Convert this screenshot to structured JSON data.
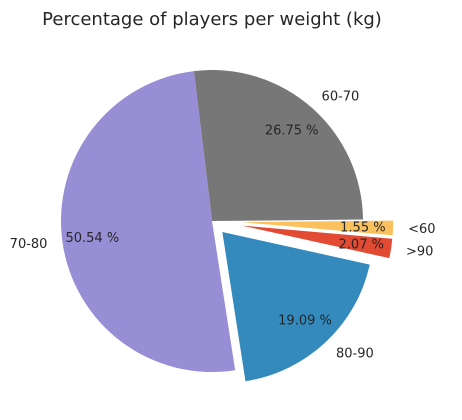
{
  "chart_data": {
    "type": "pie",
    "title": "Percentage of players per weight (kg)",
    "slices": [
      {
        "label": "<60",
        "value": 1.55,
        "display": "1.55 %",
        "color": "#fbc15e",
        "explode": 0.2
      },
      {
        "label": "60-70",
        "value": 26.75,
        "display": "26.75 %",
        "color": "#777777",
        "explode": 0
      },
      {
        "label": "70-80",
        "value": 50.54,
        "display": "50.54 %",
        "color": "#988ed5",
        "explode": 0
      },
      {
        "label": "80-90",
        "value": 19.09,
        "display": "19.09 %",
        "color": "#348abd",
        "explode": 0.1
      },
      {
        "label": ">90",
        "value": 2.07,
        "display": "2.07 %",
        "color": "#e24a33",
        "explode": 0.2
      }
    ],
    "legend": "none",
    "start_angle_deg": -5,
    "direction": "counterclockwise"
  }
}
